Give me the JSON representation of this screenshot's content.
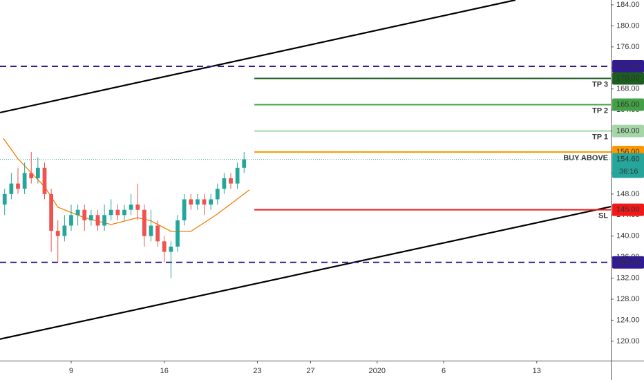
{
  "chart_data": {
    "type": "candlestick",
    "xlim": [
      3.65,
      49.57
    ],
    "xticks": [
      9,
      16,
      23,
      27,
      {
        "value": 32,
        "label": "2020"
      },
      {
        "value": 37,
        "label": "6"
      },
      {
        "value": 44,
        "label": "13"
      }
    ],
    "ylim": [
      116.3,
      184.92
    ],
    "yticks": [
      {
        "value": 184,
        "label": "184.00"
      },
      {
        "value": 180,
        "label": "180.00"
      },
      {
        "value": 176,
        "label": "176.00"
      },
      {
        "value": 172,
        "label": "172.00"
      },
      {
        "value": 168,
        "label": "168.00"
      },
      {
        "value": 164,
        "label": "164.00"
      },
      {
        "value": 160,
        "label": "160.00"
      },
      {
        "value": 156,
        "label": "156.00"
      },
      {
        "value": 152,
        "label": "152.00"
      },
      {
        "value": 148,
        "label": "148.00"
      },
      {
        "value": 144,
        "label": "144.00"
      },
      {
        "value": 140,
        "label": "140.00"
      },
      {
        "value": 136,
        "label": "136.00"
      },
      {
        "value": 132,
        "label": "132.00"
      },
      {
        "value": 128,
        "label": "128.00"
      },
      {
        "value": 124,
        "label": "124.00"
      },
      {
        "value": 120,
        "label": "120.00"
      }
    ],
    "up_color": "#26a69a",
    "down_color": "#ef5350",
    "candles": {
      "x": [
        4,
        4.5,
        5,
        5.5,
        6,
        6.5,
        7,
        7.5,
        8,
        8.5,
        9,
        9.5,
        10,
        10.5,
        11,
        11.5,
        12,
        12.5,
        13,
        13.5,
        14,
        14.5,
        15,
        15.5,
        16,
        16.5,
        17,
        17.5,
        18,
        18.5,
        19,
        19.5,
        20,
        20.5,
        21,
        21.5,
        22
      ],
      "open": [
        146,
        148,
        150,
        149,
        152,
        151,
        153,
        148,
        141,
        140,
        142,
        144,
        145,
        143,
        144,
        142,
        144,
        145,
        144,
        145,
        146,
        145,
        140,
        142,
        139,
        137,
        138,
        143,
        147,
        146,
        147,
        146,
        147,
        149,
        151,
        150,
        153
      ],
      "high": [
        149,
        152,
        153,
        154,
        156,
        155,
        154,
        149,
        143,
        144,
        146,
        146,
        146,
        145,
        145,
        146,
        147,
        146,
        146,
        148,
        150,
        146,
        145,
        143,
        140,
        139,
        144,
        148,
        148,
        148,
        148,
        148,
        150,
        152,
        152,
        154,
        156
      ],
      "low": [
        144,
        147,
        148,
        148,
        150,
        150,
        147,
        137,
        135,
        139,
        141,
        142,
        141,
        142,
        141,
        141,
        143,
        143,
        143,
        144,
        143,
        138,
        139,
        138,
        135,
        132,
        137,
        142,
        145,
        145,
        144,
        145,
        146,
        148,
        149,
        149,
        152
      ],
      "close": [
        148,
        150,
        149,
        152,
        151,
        153,
        148,
        141,
        140,
        142,
        144,
        145,
        143,
        144,
        142,
        144,
        145,
        144,
        145,
        146,
        145,
        140,
        142,
        139,
        137,
        138,
        143,
        147,
        146,
        147,
        146,
        147,
        149,
        151,
        150,
        153,
        154.6
      ]
    },
    "moving_average": {
      "color": "#f57c00",
      "x": [
        3.9,
        5,
        7,
        8,
        10,
        12,
        14,
        15,
        16.5,
        18,
        20,
        22.4
      ],
      "values": [
        158.6,
        154.7,
        149.4,
        145.5,
        143.5,
        142.2,
        143.5,
        142.9,
        140.9,
        140.9,
        144.2,
        148.8
      ]
    },
    "trendlines": [
      {
        "color": "#000000",
        "x": [
          3.65,
          42.4
        ],
        "values": [
          163.5,
          184.92
        ]
      },
      {
        "color": "#000000",
        "x": [
          3.65,
          49.57
        ],
        "values": [
          120.4,
          145.6
        ]
      }
    ],
    "levels": [
      {
        "value": 172.3,
        "label": "172.30",
        "color": "#311b92",
        "style": "dashed"
      },
      {
        "name": "TP 3",
        "value": 170,
        "label": "170.00",
        "color": "#1b5e20",
        "style": "solid",
        "start": 22.77
      },
      {
        "name": "TP 2",
        "value": 165,
        "label": "165.00",
        "color": "#43a047",
        "style": "solid",
        "start": 22.77
      },
      {
        "name": "TP 1",
        "value": 160,
        "label": "160.00",
        "color": "#a5d6a7",
        "style": "solid",
        "start": 22.77
      },
      {
        "name": "BUY ABOVE",
        "value": 156,
        "label": "156.00",
        "color": "#ff9800",
        "style": "solid",
        "start": 22.77
      },
      {
        "name": "SL",
        "value": 145,
        "label": "145.00",
        "color": "#f01818",
        "style": "solid",
        "start": 22.77
      },
      {
        "value": 135,
        "label": "135.00",
        "color": "#311b92",
        "style": "dashed"
      }
    ],
    "last_price": {
      "value": 154.6,
      "label": "154.60",
      "color": "#26a69a",
      "countdown": "36:16"
    }
  }
}
